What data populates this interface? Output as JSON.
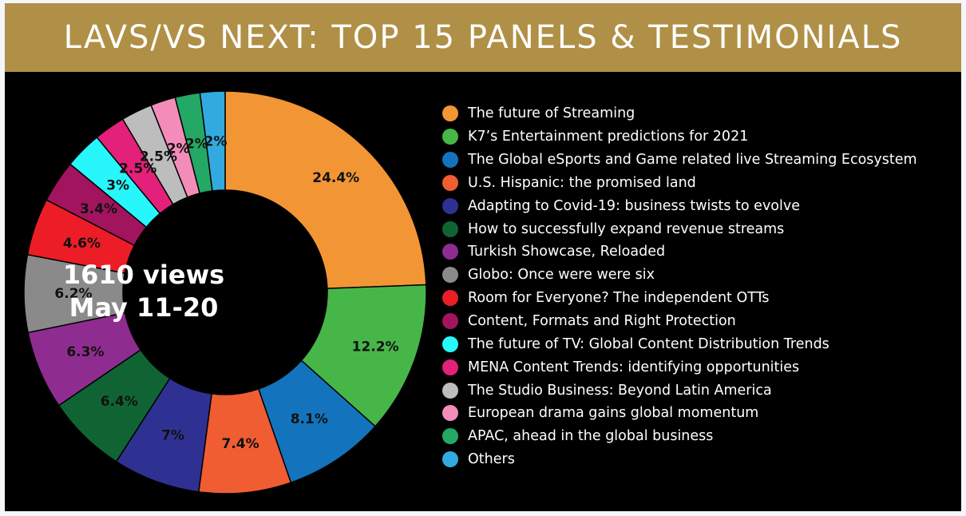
{
  "title": "LAVS/VS NEXT: TOP 15 PANELS & TESTIMONIALS",
  "colors": {
    "title_bar": "#b09046",
    "background": "#000000"
  },
  "chart_data": {
    "type": "pie",
    "donut": true,
    "center_label": [
      "1610 views",
      "May 11-20"
    ],
    "legend_position": "right",
    "slices": [
      {
        "name": "The future of Streaming",
        "value": 24.4,
        "label": "24.4%",
        "color": "#f29535"
      },
      {
        "name": "K7’s Entertainment predictions for 2021",
        "value": 12.2,
        "label": "12.2%",
        "color": "#47b649"
      },
      {
        "name": "The Global eSports and Game related live Streaming Ecosystem",
        "value": 8.1,
        "label": "8.1%",
        "color": "#1374bd"
      },
      {
        "name": "U.S. Hispanic: the promised land",
        "value": 7.4,
        "label": "7.4%",
        "color": "#f15d32"
      },
      {
        "name": "Adapting to Covid-19: business twists to evolve",
        "value": 7,
        "label": "7%",
        "color": "#2e3192"
      },
      {
        "name": "How to successfully expand revenue streams",
        "value": 6.4,
        "label": "6.4%",
        "color": "#106434"
      },
      {
        "name": "Turkish Showcase, Reloaded",
        "value": 6.3,
        "label": "6.3%",
        "color": "#8e2d8f"
      },
      {
        "name": "Globo: Once were were six",
        "value": 6.2,
        "label": "6.2%",
        "color": "#8a8a8a"
      },
      {
        "name": "Room for Everyone? The independent OTTs",
        "value": 4.6,
        "label": "4.6%",
        "color": "#ec1d27"
      },
      {
        "name": "Content, Formats and Right Protection",
        "value": 3.4,
        "label": "3.4%",
        "color": "#a2145e"
      },
      {
        "name": "The future of TV: Global Content Distribution Trends",
        "value": 3,
        "label": "3%",
        "color": "#27f6fb"
      },
      {
        "name": "MENA Content Trends: identifying opportunities",
        "value": 2.5,
        "label": "2.5%",
        "color": "#e3207a"
      },
      {
        "name": "The Studio Business: Beyond Latin America",
        "value": 2.5,
        "label": "2.5%",
        "color": "#bdbdbd"
      },
      {
        "name": "European drama gains global momentum",
        "value": 2,
        "label": "2%",
        "color": "#f48cba"
      },
      {
        "name": "APAC, ahead in the global business",
        "value": 2,
        "label": "2%",
        "color": "#24a865"
      },
      {
        "name": "Others",
        "value": 2,
        "label": "2%",
        "color": "#32aadf"
      }
    ]
  }
}
